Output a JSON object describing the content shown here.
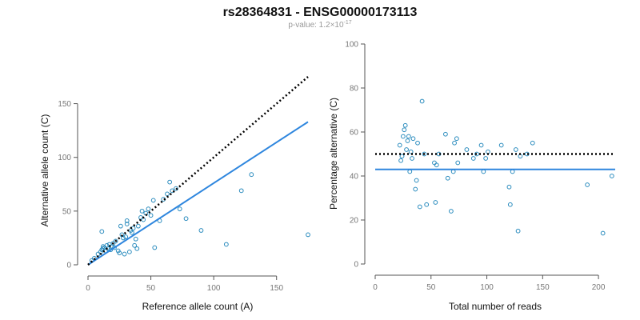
{
  "title": "rs28364831 - ENSG00000173113",
  "subtitle": {
    "prefix": "p-value: 1.2×10",
    "exponent": "-17"
  },
  "colors": {
    "point": "#2b8cbe",
    "fit_line": "#2e86de",
    "reference_line": "#000000"
  },
  "chart_data": [
    {
      "type": "scatter",
      "xlabel": "Reference allele count (A)",
      "ylabel": "Alternative allele count (C)",
      "xlim": [
        0,
        175
      ],
      "ylim": [
        0,
        175
      ],
      "xticks": [
        0,
        50,
        100,
        150
      ],
      "yticks": [
        0,
        50,
        100,
        150
      ],
      "points": [
        {
          "x": 3,
          "y": 4
        },
        {
          "x": 5,
          "y": 6
        },
        {
          "x": 8,
          "y": 10
        },
        {
          "x": 10,
          "y": 12
        },
        {
          "x": 11,
          "y": 14
        },
        {
          "x": 12,
          "y": 15
        },
        {
          "x": 12,
          "y": 17
        },
        {
          "x": 13,
          "y": 16
        },
        {
          "x": 14,
          "y": 13
        },
        {
          "x": 15,
          "y": 18
        },
        {
          "x": 16,
          "y": 15
        },
        {
          "x": 17,
          "y": 19
        },
        {
          "x": 18,
          "y": 14
        },
        {
          "x": 19,
          "y": 17
        },
        {
          "x": 20,
          "y": 20
        },
        {
          "x": 21,
          "y": 16
        },
        {
          "x": 22,
          "y": 22
        },
        {
          "x": 24,
          "y": 13
        },
        {
          "x": 25,
          "y": 11
        },
        {
          "x": 26,
          "y": 36
        },
        {
          "x": 27,
          "y": 28
        },
        {
          "x": 28,
          "y": 25
        },
        {
          "x": 29,
          "y": 10
        },
        {
          "x": 30,
          "y": 26
        },
        {
          "x": 31,
          "y": 38
        },
        {
          "x": 31,
          "y": 41
        },
        {
          "x": 33,
          "y": 12
        },
        {
          "x": 34,
          "y": 32
        },
        {
          "x": 35,
          "y": 30
        },
        {
          "x": 36,
          "y": 34
        },
        {
          "x": 37,
          "y": 18
        },
        {
          "x": 38,
          "y": 24
        },
        {
          "x": 39,
          "y": 15
        },
        {
          "x": 40,
          "y": 36
        },
        {
          "x": 42,
          "y": 44
        },
        {
          "x": 43,
          "y": 50
        },
        {
          "x": 44,
          "y": 42
        },
        {
          "x": 46,
          "y": 48
        },
        {
          "x": 48,
          "y": 52
        },
        {
          "x": 50,
          "y": 46
        },
        {
          "x": 52,
          "y": 60
        },
        {
          "x": 53,
          "y": 16
        },
        {
          "x": 57,
          "y": 41
        },
        {
          "x": 60,
          "y": 61
        },
        {
          "x": 63,
          "y": 66
        },
        {
          "x": 65,
          "y": 77
        },
        {
          "x": 67,
          "y": 69
        },
        {
          "x": 70,
          "y": 71
        },
        {
          "x": 73,
          "y": 52
        },
        {
          "x": 78,
          "y": 43
        },
        {
          "x": 90,
          "y": 32
        },
        {
          "x": 110,
          "y": 19
        },
        {
          "x": 122,
          "y": 69
        },
        {
          "x": 130,
          "y": 84
        },
        {
          "x": 175,
          "y": 28
        },
        {
          "x": 11,
          "y": 31
        }
      ],
      "fit_line": {
        "x": [
          0,
          175
        ],
        "y": [
          0,
          133
        ]
      },
      "reference_line": {
        "x": [
          0,
          175
        ],
        "y": [
          0,
          175
        ]
      }
    },
    {
      "type": "scatter",
      "xlabel": "Total number of reads",
      "ylabel": "Percentage alternative (C)",
      "xlim": [
        0,
        215
      ],
      "ylim": [
        0,
        100
      ],
      "xticks": [
        0,
        50,
        100,
        150,
        200
      ],
      "yticks": [
        0,
        20,
        40,
        60,
        80,
        100
      ],
      "points": [
        {
          "x": 22,
          "y": 54
        },
        {
          "x": 23,
          "y": 47
        },
        {
          "x": 24,
          "y": 49
        },
        {
          "x": 25,
          "y": 58
        },
        {
          "x": 26,
          "y": 61
        },
        {
          "x": 27,
          "y": 63
        },
        {
          "x": 28,
          "y": 52
        },
        {
          "x": 29,
          "y": 56
        },
        {
          "x": 30,
          "y": 58
        },
        {
          "x": 31,
          "y": 42
        },
        {
          "x": 32,
          "y": 51
        },
        {
          "x": 33,
          "y": 48
        },
        {
          "x": 34,
          "y": 57
        },
        {
          "x": 36,
          "y": 34
        },
        {
          "x": 37,
          "y": 38
        },
        {
          "x": 38,
          "y": 55
        },
        {
          "x": 40,
          "y": 26
        },
        {
          "x": 42,
          "y": 74
        },
        {
          "x": 44,
          "y": 50
        },
        {
          "x": 46,
          "y": 27
        },
        {
          "x": 53,
          "y": 46
        },
        {
          "x": 54,
          "y": 28
        },
        {
          "x": 55,
          "y": 45
        },
        {
          "x": 57,
          "y": 50
        },
        {
          "x": 63,
          "y": 59
        },
        {
          "x": 65,
          "y": 39
        },
        {
          "x": 68,
          "y": 24
        },
        {
          "x": 70,
          "y": 42
        },
        {
          "x": 71,
          "y": 55
        },
        {
          "x": 73,
          "y": 57
        },
        {
          "x": 74,
          "y": 46
        },
        {
          "x": 82,
          "y": 52
        },
        {
          "x": 88,
          "y": 48
        },
        {
          "x": 91,
          "y": 50
        },
        {
          "x": 95,
          "y": 54
        },
        {
          "x": 97,
          "y": 42
        },
        {
          "x": 99,
          "y": 48
        },
        {
          "x": 101,
          "y": 51
        },
        {
          "x": 113,
          "y": 54
        },
        {
          "x": 120,
          "y": 35
        },
        {
          "x": 121,
          "y": 27
        },
        {
          "x": 123,
          "y": 42
        },
        {
          "x": 126,
          "y": 52
        },
        {
          "x": 128,
          "y": 15
        },
        {
          "x": 130,
          "y": 49
        },
        {
          "x": 136,
          "y": 50
        },
        {
          "x": 141,
          "y": 55
        },
        {
          "x": 190,
          "y": 36
        },
        {
          "x": 204,
          "y": 14
        },
        {
          "x": 212,
          "y": 40
        }
      ],
      "fit_line": {
        "x": [
          0,
          215
        ],
        "y": [
          43,
          43
        ]
      },
      "reference_line": {
        "x": [
          0,
          215
        ],
        "y": [
          50,
          50
        ]
      }
    }
  ]
}
